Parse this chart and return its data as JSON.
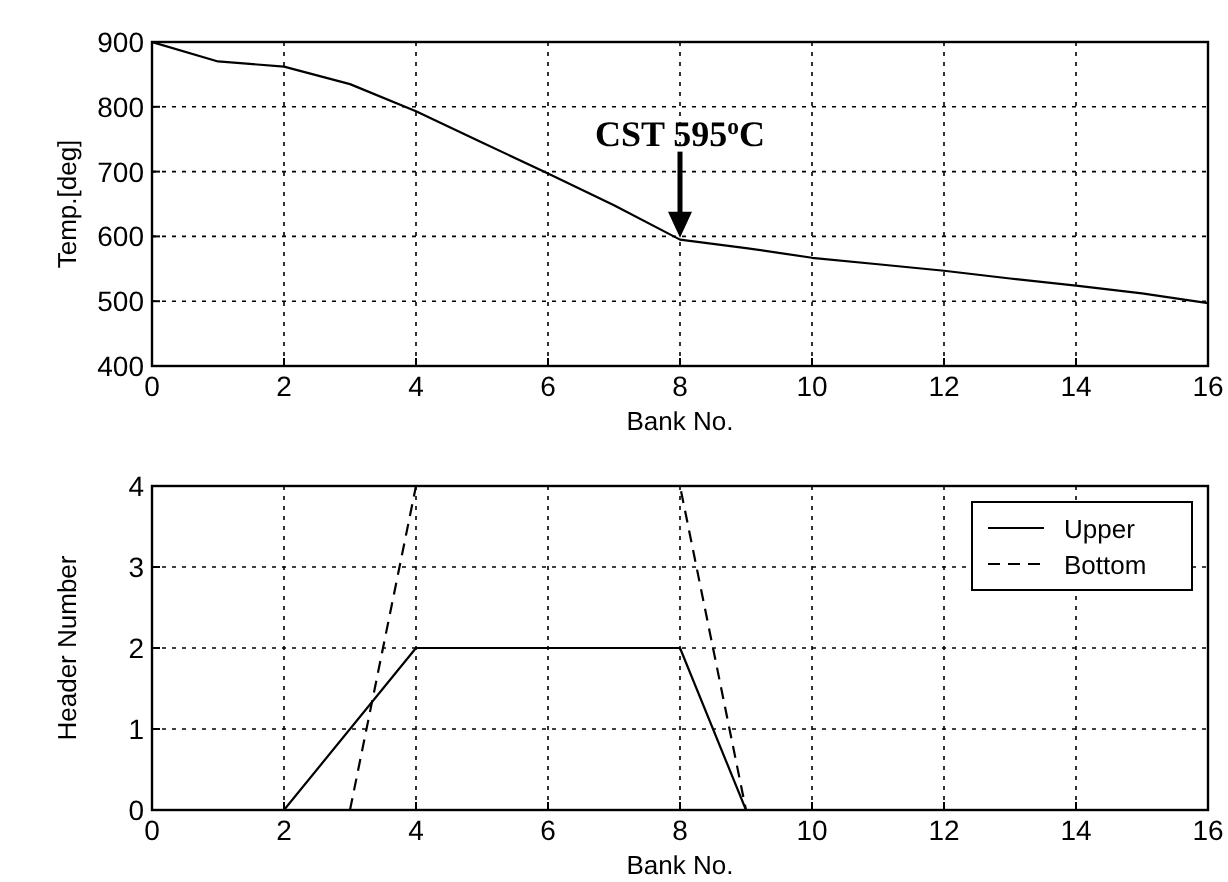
{
  "chart_data": [
    {
      "type": "line",
      "xlabel": "Bank No.",
      "ylabel": "Temp.[deg]",
      "x": [
        0,
        1,
        2,
        3,
        4,
        5,
        6,
        7,
        8,
        9,
        10,
        11,
        12,
        13,
        14,
        15,
        16
      ],
      "series": [
        {
          "color": "#000000",
          "values": [
            900,
            870,
            862,
            835,
            793,
            745,
            697,
            648,
            595,
            582,
            567,
            557,
            547,
            535,
            524,
            512,
            497
          ]
        }
      ],
      "xlim": [
        0,
        16
      ],
      "xticks": [
        0,
        2,
        4,
        6,
        8,
        10,
        12,
        14,
        16
      ],
      "ylim": [
        400,
        900
      ],
      "yticks": [
        400,
        500,
        600,
        700,
        800,
        900
      ],
      "grid": true,
      "annotations": [
        {
          "text": "CST 595$^{o}$C",
          "x": 8,
          "y": 595
        }
      ]
    },
    {
      "type": "line",
      "xlabel": "Bank No.",
      "ylabel": "Header Number",
      "legend": "top right",
      "series": [
        {
          "name": "Upper",
          "color": "#000000",
          "line_style": "solid",
          "x": [
            2,
            4,
            8,
            9
          ],
          "values": [
            0,
            2,
            2,
            0
          ]
        },
        {
          "name": "Bottom",
          "color": "#000000",
          "line_style": "dashed",
          "x": [
            3,
            4,
            8,
            9
          ],
          "values": [
            0,
            4,
            4,
            0
          ]
        }
      ],
      "xlim": [
        0,
        16
      ],
      "xticks": [
        0,
        2,
        4,
        6,
        8,
        10,
        12,
        14,
        16
      ],
      "ylim": [
        0,
        4
      ],
      "yticks": [
        0,
        1,
        2,
        3,
        4
      ],
      "grid": true
    }
  ]
}
